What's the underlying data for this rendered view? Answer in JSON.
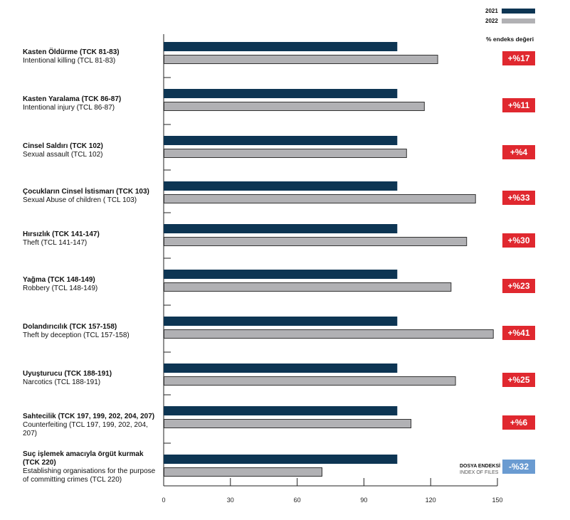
{
  "chart_data": {
    "type": "bar",
    "orientation": "horizontal",
    "categories": [
      {
        "title": "Kasten Öldürme (TCK 81-83)",
        "subtitle": "Intentional killing (TCL 81-83)"
      },
      {
        "title": "Kasten Yaralama (TCK 86-87)",
        "subtitle": "Intentional injury (TCL 86-87)"
      },
      {
        "title": "Cinsel Saldırı (TCK 102)",
        "subtitle": "Sexual assault (TCL 102)"
      },
      {
        "title": "Çocukların Cinsel İstismarı (TCK 103)",
        "subtitle": "Sexual Abuse of children ( TCL 103)"
      },
      {
        "title": "Hırsızlık (TCK 141-147)",
        "subtitle": "Theft (TCL 141-147)"
      },
      {
        "title": "Yağma (TCK 148-149)",
        "subtitle": "Robbery (TCL 148-149)"
      },
      {
        "title": "Dolandırıcılık (TCK 157-158)",
        "subtitle": "Theft by deception (TCL 157-158)"
      },
      {
        "title": "Uyuşturucu (TCK 188-191)",
        "subtitle": "Narcotics (TCL 188-191)"
      },
      {
        "title": "Sahtecilik (TCK 197, 199, 202, 204, 207)",
        "subtitle": "Counterfeiting (TCL 197, 199, 202, 204, 207)"
      },
      {
        "title": "Suç işlemek amacıyla örgüt kurmak (TCK 220)",
        "subtitle": "Establishing organisations for the purpose of committing crimes (TCL 220)"
      }
    ],
    "series": [
      {
        "name": "2021",
        "color": "#0d3553",
        "values": [
          105,
          105,
          105,
          105,
          105,
          105,
          105,
          105,
          105,
          105
        ]
      },
      {
        "name": "2022",
        "color": "#b1b1b4",
        "values": [
          123,
          117,
          109,
          140,
          136,
          129,
          148,
          131,
          111,
          71
        ]
      }
    ],
    "change_header": "% endeks değeri",
    "changes": [
      "+%17",
      "+%11",
      "+%4",
      "+%33",
      "+%30",
      "+%23",
      "+%41",
      "+%25",
      "+%6",
      "-%32"
    ],
    "change_colors": {
      "positive": "#e0282f",
      "negative": "#6a9bd1"
    },
    "index_label": "DOSYA ENDEKSİ",
    "index_sublabel": "INDEX OF FILES",
    "xlim": [
      0,
      150
    ],
    "xticks": [
      "0",
      "30",
      "60",
      "90",
      "120",
      "150"
    ],
    "legend": "top-right",
    "grid": false
  }
}
